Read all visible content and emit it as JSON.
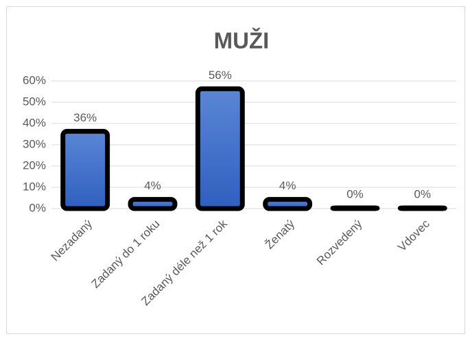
{
  "chart_data": {
    "type": "bar",
    "title": "MUŽI",
    "categories": [
      "Nezadaný",
      "Zadaný do 1 roku",
      "Zadaný déle než 1 rok",
      "Ženatý",
      "Rozvedený",
      "Vdovec"
    ],
    "values": [
      36,
      4,
      56,
      4,
      0,
      0
    ],
    "value_labels": [
      "36%",
      "4%",
      "56%",
      "4%",
      "0%",
      "0%"
    ],
    "color": "#4472c4",
    "ylim": [
      0,
      60
    ],
    "yticks": [
      {
        "value": 0,
        "label": "0%"
      },
      {
        "value": 10,
        "label": "10%"
      },
      {
        "value": 20,
        "label": "20%"
      },
      {
        "value": 30,
        "label": "30%"
      },
      {
        "value": 40,
        "label": "40%"
      },
      {
        "value": 50,
        "label": "50%"
      },
      {
        "value": 60,
        "label": "60%"
      }
    ],
    "grid": true
  }
}
